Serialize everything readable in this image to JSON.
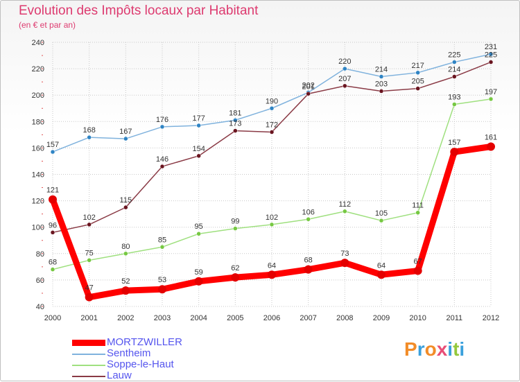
{
  "header": {
    "title": "Evolution des Impôts locaux par Habitant",
    "subtitle": "(en € et par an)"
  },
  "colors": {
    "title": "#dd3a6f",
    "grid": "#c8c8c8",
    "axis_text": "#333333"
  },
  "logo": {
    "letters": [
      "P",
      "r",
      "o",
      "x",
      "i",
      "t",
      "i"
    ],
    "colors": [
      "#f28c28",
      "#3aa0dc",
      "#f28c28",
      "#e94e77",
      "#3aa0dc",
      "#94c83d",
      "#3aa0dc"
    ]
  },
  "chart_data": {
    "type": "line",
    "title": "Evolution des Impôts locaux par Habitant",
    "subtitle": "(en € et par an)",
    "xlabel": "",
    "ylabel": "",
    "ylim": [
      40,
      240
    ],
    "yticks": [
      40,
      60,
      80,
      100,
      120,
      140,
      160,
      180,
      200,
      220,
      240
    ],
    "grid": true,
    "legend_position": "bottom-left",
    "categories": [
      "2000",
      "2001",
      "2002",
      "2003",
      "2004",
      "2005",
      "2006",
      "2007",
      "2008",
      "2009",
      "2010",
      "2011",
      "2012"
    ],
    "series": [
      {
        "name": "MORTZWILLER",
        "color": "#ff0000",
        "point_color": "#e40000",
        "label_color": "#5555ee",
        "emphasis": true,
        "values": [
          121,
          47,
          52,
          53,
          59,
          62,
          64,
          68,
          73,
          64,
          67,
          157,
          161
        ]
      },
      {
        "name": "Sentheim",
        "color": "#7fb2dd",
        "point_color": "#2f84c4",
        "label_color": "#5555ee",
        "emphasis": false,
        "values": [
          157,
          168,
          167,
          176,
          177,
          181,
          190,
          202,
          220,
          214,
          217,
          225,
          231
        ]
      },
      {
        "name": "Soppe-le-Haut",
        "color": "#9fe07f",
        "point_color": "#76c842",
        "label_color": "#5555ee",
        "emphasis": false,
        "values": [
          68,
          75,
          80,
          85,
          95,
          99,
          102,
          106,
          112,
          105,
          111,
          193,
          197
        ]
      },
      {
        "name": "Lauw",
        "color": "#8a3a45",
        "point_color": "#6a1520",
        "label_color": "#5555ee",
        "emphasis": false,
        "values": [
          96,
          102,
          115,
          146,
          154,
          173,
          172,
          201,
          207,
          203,
          205,
          214,
          225
        ]
      }
    ]
  }
}
